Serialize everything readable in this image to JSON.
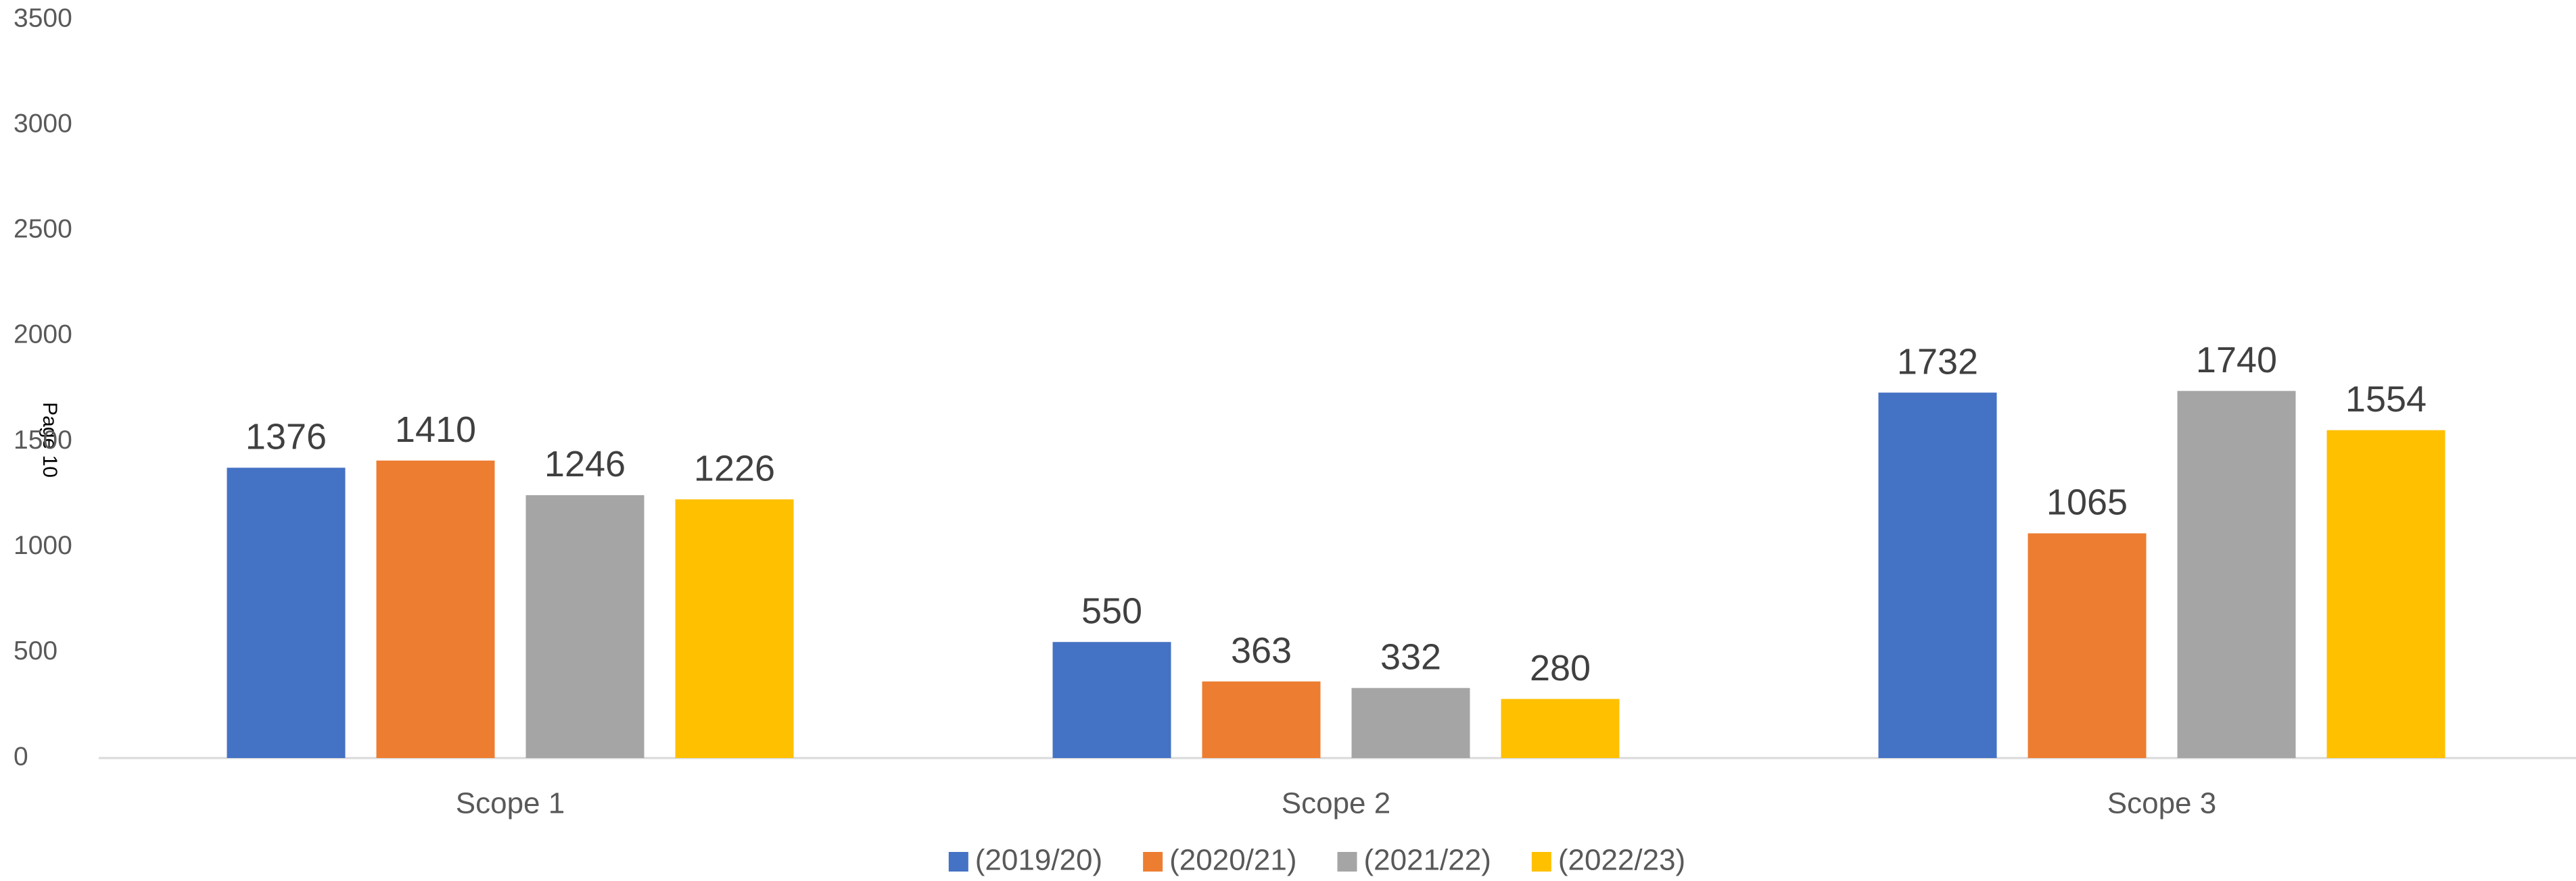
{
  "chart_data": {
    "type": "bar",
    "page_label": "Page 10",
    "categories": [
      "Scope 1",
      "Scope 2",
      "Scope 3"
    ],
    "series": [
      {
        "name": "(2019/20)",
        "color": "#4472c4",
        "values": [
          1376,
          550,
          1732
        ]
      },
      {
        "name": "(2020/21)",
        "color": "#ed7d31",
        "values": [
          1410,
          363,
          1065
        ]
      },
      {
        "name": "(2021/22)",
        "color": "#a5a5a5",
        "values": [
          1246,
          332,
          1740
        ]
      },
      {
        "name": "(2022/23)",
        "color": "#ffc000",
        "values": [
          1226,
          280,
          1554
        ]
      }
    ],
    "ylim": [
      0,
      3500
    ],
    "yticks": [
      0,
      500,
      1000,
      1500,
      2000,
      2500,
      3000,
      3500
    ],
    "grid": false,
    "legend": "bottom"
  }
}
